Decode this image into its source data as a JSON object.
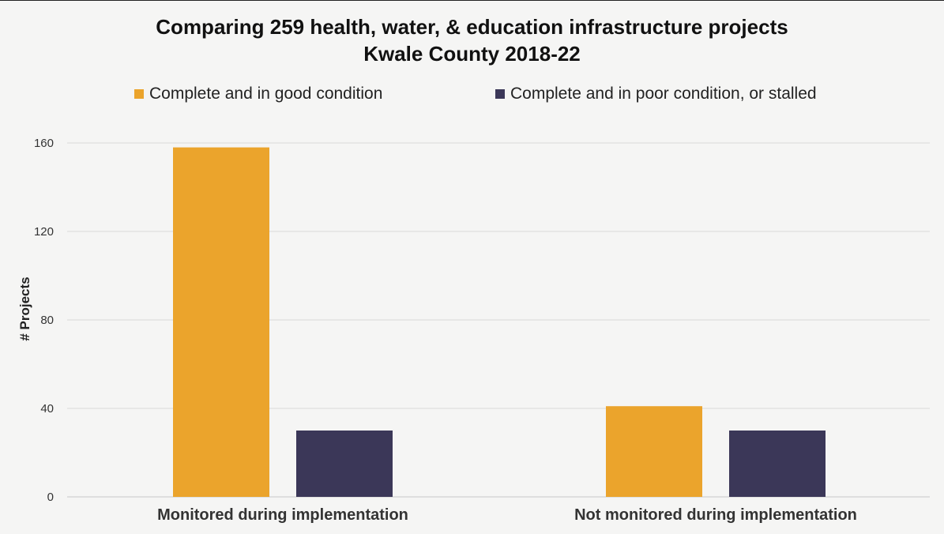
{
  "chart_data": {
    "type": "bar",
    "title": "Comparing 259 health, water, & education infrastructure projects",
    "subtitle": "Kwale County 2018-22",
    "ylabel": "# Projects",
    "xlabel": "",
    "categories": [
      "Monitored during implementation",
      "Not monitored during implementation"
    ],
    "series": [
      {
        "name": "Complete and in good condition",
        "values": [
          158,
          41
        ],
        "color": "#eba42c"
      },
      {
        "name": "Complete and in poor condition, or stalled",
        "values": [
          30,
          30
        ],
        "color": "#3b3758"
      }
    ],
    "ylim": [
      0,
      160
    ],
    "yticks": [
      0,
      40,
      80,
      120,
      160
    ],
    "grid": true,
    "legend_position": "top"
  }
}
